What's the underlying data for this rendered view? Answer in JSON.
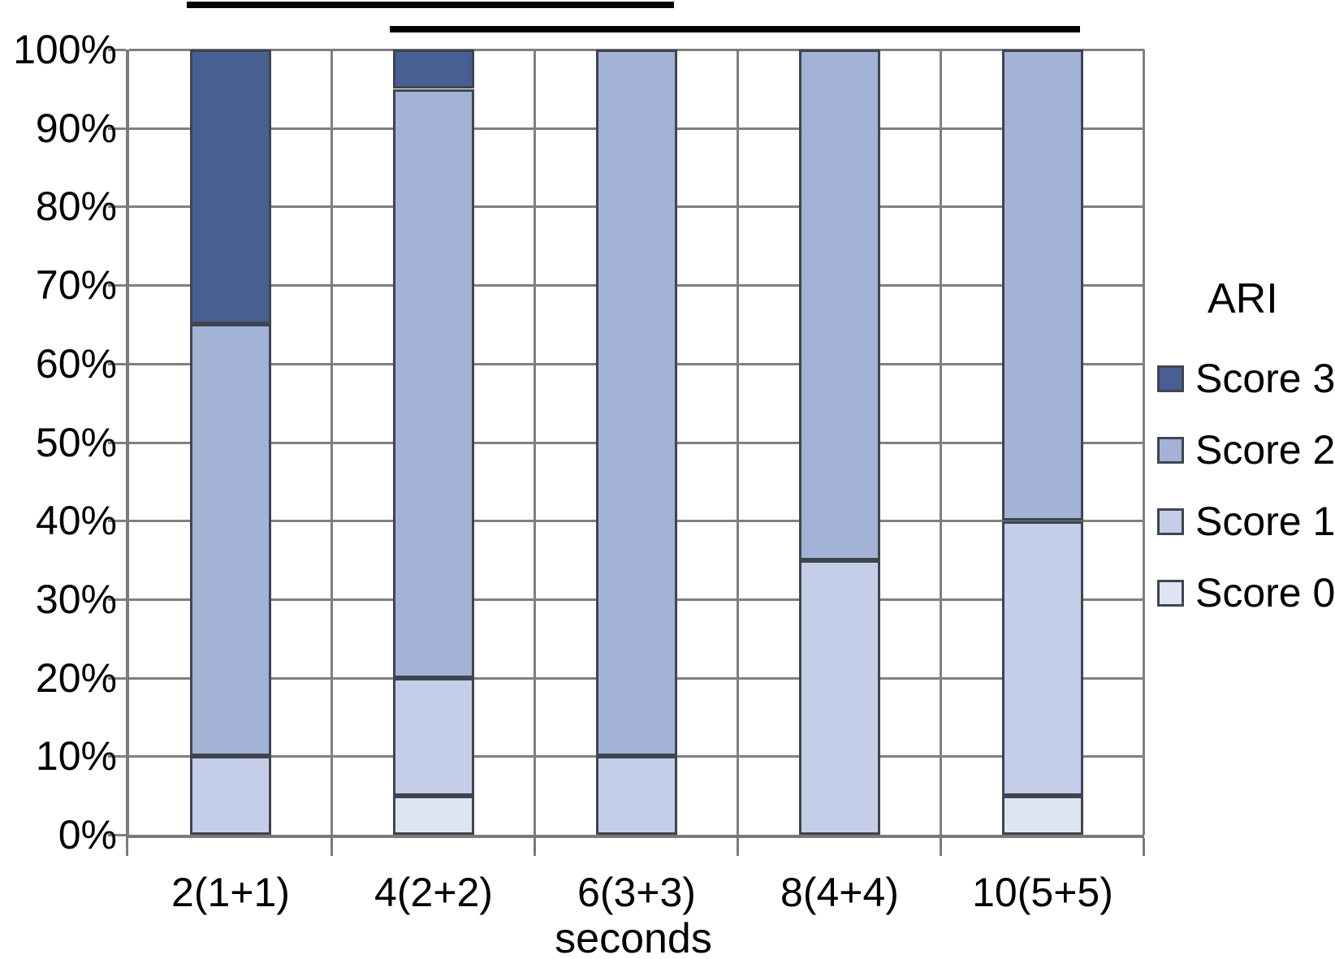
{
  "chart_data": {
    "type": "bar",
    "stacked": true,
    "units": "percent",
    "title": "",
    "xlabel": "seconds",
    "ylabel": "",
    "categories": [
      "2(1+1)",
      "4(2+2)",
      "6(3+3)",
      "8(4+4)",
      "10(5+5)"
    ],
    "series": [
      {
        "name": "Score 0",
        "color": "#dee4f2",
        "values": [
          0,
          5,
          0,
          0,
          5
        ]
      },
      {
        "name": "Score 1",
        "color": "#c5cee8",
        "values": [
          10,
          15,
          10,
          35,
          35
        ]
      },
      {
        "name": "Score 2",
        "color": "#a2b3d5",
        "values": [
          55,
          75,
          90,
          65,
          60
        ]
      },
      {
        "name": "Score 3",
        "color": "#475f92",
        "values": [
          35,
          5,
          0,
          0,
          0
        ]
      }
    ],
    "y_ticks": [
      "100%",
      "90%",
      "80%",
      "70%",
      "60%",
      "50%",
      "40%",
      "30%",
      "20%",
      "10%",
      "0%"
    ],
    "ylim": [
      0,
      100
    ],
    "grid": true,
    "legend": {
      "title": "ARI",
      "position": "right",
      "entries_top_to_bottom": [
        "Score 3",
        "Score 2",
        "Score 1",
        "Score 0"
      ]
    },
    "annotations": [
      {
        "type": "significance-line",
        "row": 0,
        "from_category": "2(1+1)",
        "to_category": "6(3+3)"
      },
      {
        "type": "significance-line",
        "row": 1,
        "from_category": "4(2+2)",
        "to_category": "10(5+5)"
      }
    ],
    "colors": {
      "gridline": "#7f7f7f",
      "axis": "#7a7a7a",
      "bar_border": "#3f4550",
      "annotation_line": "#000000",
      "background": "#ffffff"
    }
  }
}
